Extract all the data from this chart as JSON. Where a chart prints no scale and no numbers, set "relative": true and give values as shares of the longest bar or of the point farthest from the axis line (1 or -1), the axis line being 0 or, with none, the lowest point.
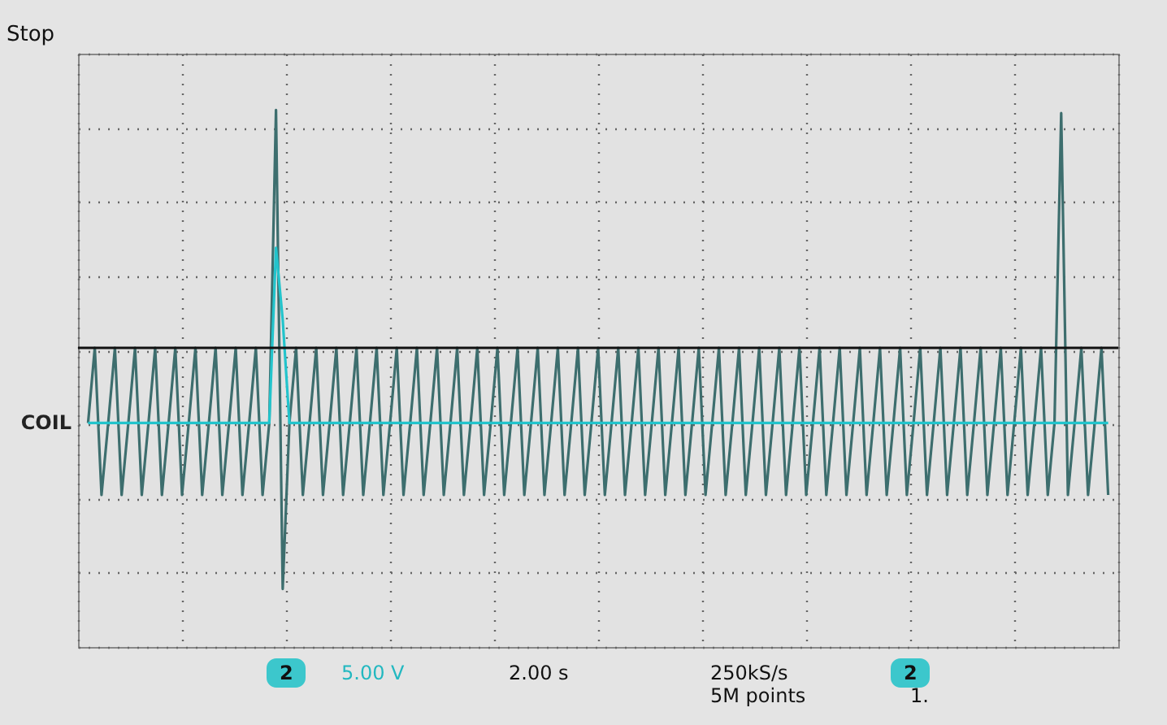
{
  "chart_data": {
    "type": "line",
    "title": "Stop",
    "relative": true,
    "grid": true,
    "tick_labels": false,
    "legend": false,
    "line_style": "solid",
    "marker": "none",
    "categories": [
      null,
      null,
      null,
      null,
      null,
      null,
      null,
      null,
      null,
      null,
      null,
      null,
      null,
      null,
      null,
      null,
      null,
      null,
      null,
      null,
      null,
      null,
      null,
      null,
      null,
      null,
      null,
      null,
      null,
      null,
      null,
      null,
      null,
      null,
      null,
      null,
      null,
      null,
      null,
      null,
      null,
      null,
      null,
      null,
      null,
      null,
      null,
      null,
      null,
      null,
      null,
      null,
      null,
      null,
      null,
      null,
      null,
      null,
      null,
      null,
      null,
      null,
      null,
      null,
      null,
      null,
      null,
      null,
      null,
      null,
      null,
      null,
      null,
      null,
      null,
      null,
      null,
      null,
      null,
      null,
      null,
      null,
      null,
      null,
      null,
      null,
      null,
      null,
      null,
      null,
      null,
      null,
      null,
      null,
      null,
      null,
      null,
      null,
      null,
      null,
      null,
      null,
      null,
      null,
      null,
      null,
      null,
      null,
      null,
      null,
      null,
      null,
      null,
      null,
      null,
      null,
      null,
      null,
      null,
      null,
      null,
      null,
      null,
      null,
      null,
      null,
      null,
      null,
      null,
      null,
      null,
      null,
      null,
      null,
      null,
      null,
      null,
      null,
      null,
      null,
      null,
      null,
      null,
      null,
      null,
      null,
      null,
      null,
      null,
      null,
      null,
      null,
      null
    ],
    "series": [
      {
        "color": "#3d6e6e",
        "values": [
          0,
          0.24,
          -0.23,
          0,
          0.24,
          -0.23,
          0,
          0.24,
          -0.23,
          0,
          0.24,
          -0.23,
          0,
          0.24,
          -0.23,
          0,
          0.24,
          -0.23,
          0,
          0.24,
          -0.23,
          0,
          0.24,
          -0.23,
          0,
          0.24,
          -0.23,
          0,
          1,
          -0.53,
          0,
          0.24,
          -0.23,
          0,
          0.24,
          -0.23,
          0,
          0.24,
          -0.23,
          0,
          0.24,
          -0.23,
          0,
          0.24,
          -0.23,
          0,
          0.24,
          -0.23,
          0,
          0.24,
          -0.23,
          0,
          0.24,
          -0.23,
          0,
          0.24,
          -0.23,
          0,
          0.24,
          -0.23,
          0,
          0.24,
          -0.23,
          0,
          0.24,
          -0.23,
          0,
          0.24,
          -0.23,
          0,
          0.24,
          -0.23,
          0,
          0.24,
          -0.23,
          0,
          0.24,
          -0.23,
          0,
          0.24,
          -0.23,
          0,
          0.24,
          -0.23,
          0,
          0.24,
          -0.23,
          0,
          0.24,
          -0.23,
          0,
          0.24,
          -0.23,
          0,
          0.24,
          -0.23,
          0,
          0.24,
          -0.23,
          0,
          0.24,
          -0.23,
          0,
          0.24,
          -0.23,
          0,
          0.24,
          -0.23,
          0,
          0.24,
          -0.23,
          0,
          0.24,
          -0.23,
          0,
          0.24,
          -0.23,
          0,
          0.24,
          -0.23,
          0,
          0.24,
          -0.23,
          0,
          0.24,
          -0.23,
          0,
          0.24,
          -0.23,
          0,
          0.24,
          -0.23,
          0,
          0.24,
          -0.23,
          0,
          0.24,
          -0.23,
          0,
          0.24,
          -0.23,
          0,
          0.24,
          -0.23,
          0,
          0.99,
          -0.23,
          0,
          0.24,
          -0.23,
          0,
          0.24,
          -0.23
        ]
      },
      {
        "name": "COIL",
        "color": "#22c4cc",
        "values": [
          0,
          0,
          0,
          0,
          0,
          0,
          0,
          0,
          0,
          0,
          0,
          0,
          0,
          0,
          0,
          0,
          0,
          0,
          0,
          0,
          0,
          0,
          0,
          0,
          0,
          0,
          0,
          0,
          0.56,
          0.33,
          0,
          0,
          0,
          0,
          0,
          0,
          0,
          0,
          0,
          0,
          0,
          0,
          0,
          0,
          0,
          0,
          0,
          0,
          0,
          0,
          0,
          0,
          0,
          0,
          0,
          0,
          0,
          0,
          0,
          0,
          0,
          0,
          0,
          0,
          0,
          0,
          0,
          0,
          0,
          0,
          0,
          0,
          0,
          0,
          0,
          0,
          0,
          0,
          0,
          0,
          0,
          0,
          0,
          0,
          0,
          0,
          0,
          0,
          0,
          0,
          0,
          0,
          0,
          0,
          0,
          0,
          0,
          0,
          0,
          0,
          0,
          0,
          0,
          0,
          0,
          0,
          0,
          0,
          0,
          0,
          0,
          0,
          0,
          0,
          0,
          0,
          0,
          0,
          0,
          0,
          0,
          0,
          0,
          0,
          0,
          0,
          0,
          0,
          0,
          0,
          0,
          0,
          0,
          0,
          0,
          0,
          0,
          0,
          0,
          0,
          0,
          0,
          0,
          0,
          0,
          0,
          0,
          0,
          0,
          0,
          0,
          0,
          0
        ]
      }
    ],
    "ref_lines": [
      {
        "axis": "y",
        "value": 0.24,
        "color": "#111111"
      }
    ],
    "annotations": [
      "2",
      "5.00 V",
      "2.00 s",
      "250kS/s",
      "5M points",
      "2",
      "1."
    ]
  }
}
